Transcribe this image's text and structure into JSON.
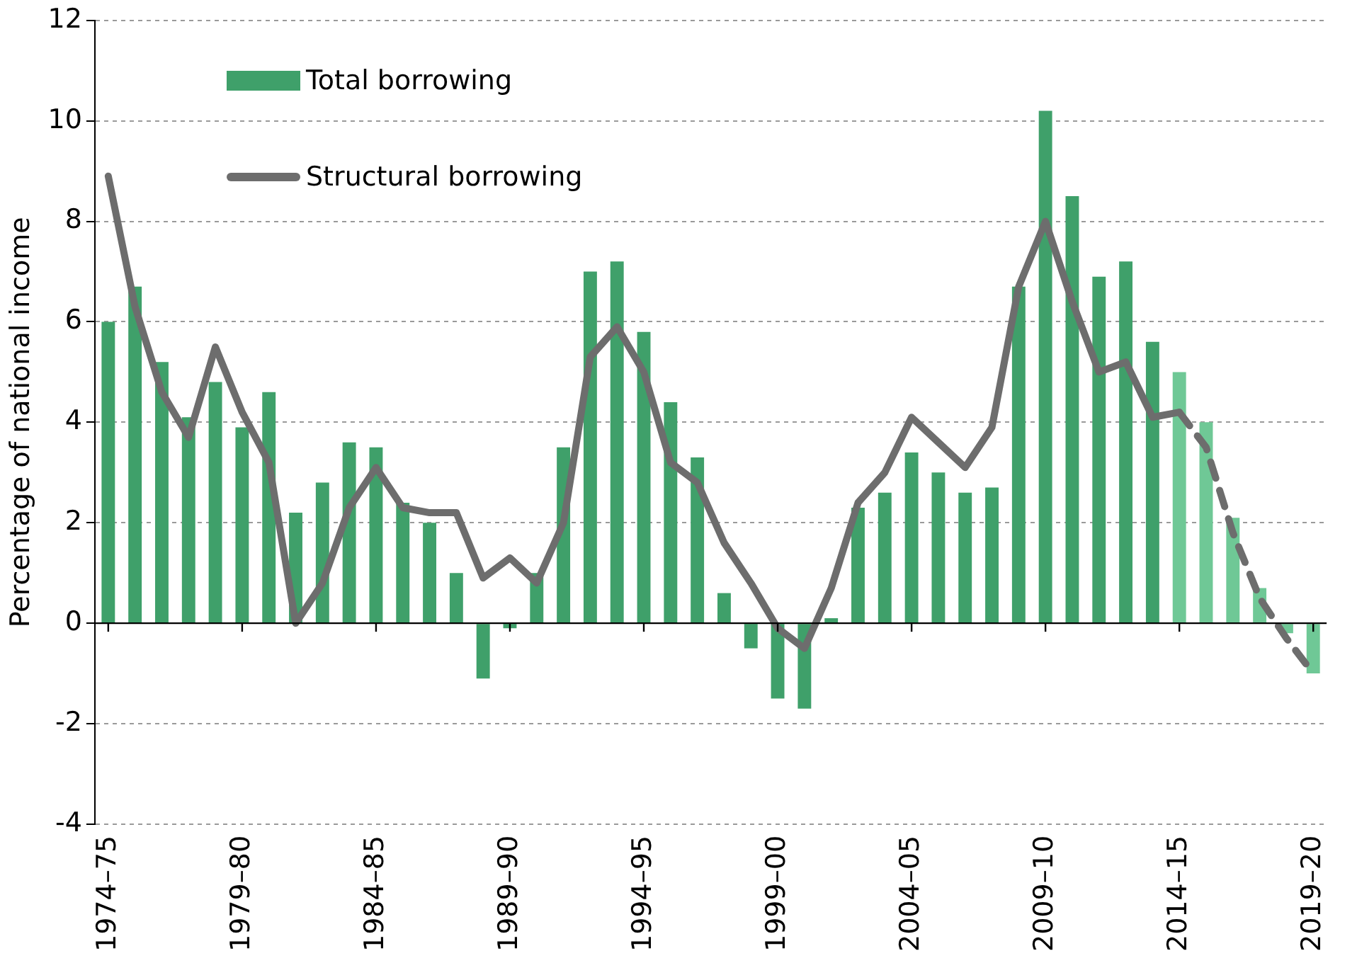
{
  "chart_data": {
    "type": "bar",
    "ylabel": "Percentage of national income",
    "categories": [
      "1974–75",
      null,
      null,
      null,
      null,
      "1979–80",
      null,
      null,
      null,
      null,
      "1984–85",
      null,
      null,
      null,
      null,
      "1989–90",
      null,
      null,
      null,
      null,
      "1994–95",
      null,
      null,
      null,
      null,
      "1999–00",
      null,
      null,
      null,
      null,
      "2004–05",
      null,
      null,
      null,
      null,
      "2009–10",
      null,
      null,
      null,
      null,
      "2014–15",
      null,
      null,
      null,
      null,
      "2019–20"
    ],
    "series": [
      {
        "name": "Total borrowing",
        "color": "#3fa06a",
        "colors": [
          "#3fa06a",
          "#3fa06a",
          "#3fa06a",
          "#3fa06a",
          "#3fa06a",
          "#3fa06a",
          "#3fa06a",
          "#3fa06a",
          "#3fa06a",
          "#3fa06a",
          "#3fa06a",
          "#3fa06a",
          "#3fa06a",
          "#3fa06a",
          "#3fa06a",
          "#3fa06a",
          "#3fa06a",
          "#3fa06a",
          "#3fa06a",
          "#3fa06a",
          "#3fa06a",
          "#3fa06a",
          "#3fa06a",
          "#3fa06a",
          "#3fa06a",
          "#3fa06a",
          "#3fa06a",
          "#3fa06a",
          "#3fa06a",
          "#3fa06a",
          "#3fa06a",
          "#3fa06a",
          "#3fa06a",
          "#3fa06a",
          "#3fa06a",
          "#3fa06a",
          "#3fa06a",
          "#3fa06a",
          "#3fa06a",
          "#3fa06a",
          "#6fc896",
          "#6fc896",
          "#6fc896",
          "#6fc896",
          "#6fc896",
          "#6fc896"
        ],
        "values": [
          6.0,
          6.7,
          5.2,
          4.1,
          4.8,
          3.9,
          4.6,
          2.2,
          2.8,
          3.6,
          3.5,
          2.4,
          2.0,
          1.0,
          -1.1,
          -0.1,
          1.0,
          3.5,
          7.0,
          7.2,
          5.8,
          4.4,
          3.3,
          0.6,
          -0.5,
          -1.5,
          -1.7,
          0.1,
          2.3,
          2.6,
          3.4,
          3.0,
          2.6,
          2.7,
          6.7,
          10.2,
          8.5,
          6.9,
          7.2,
          5.6,
          5.0,
          4.0,
          2.1,
          0.7,
          -0.2,
          -1.0
        ]
      },
      {
        "name": "Structural borrowing",
        "type": "line",
        "color": "#6d6d6d",
        "line_style": "solid",
        "values": [
          8.9,
          6.3,
          4.6,
          3.7,
          5.5,
          4.2,
          3.2,
          0.0,
          0.8,
          2.3,
          3.1,
          2.3,
          2.2,
          2.2,
          0.9,
          1.3,
          0.8,
          2.0,
          5.3,
          5.9,
          5.0,
          3.2,
          2.8,
          1.6,
          0.8,
          -0.1,
          -0.5,
          0.7,
          2.4,
          3.0,
          4.1,
          3.6,
          3.1,
          3.9,
          6.7,
          8.0,
          6.4,
          5.0,
          5.2,
          4.1,
          4.2,
          null,
          null,
          null,
          null,
          null
        ]
      },
      {
        "type": "line",
        "color": "#6d6d6d",
        "line_style": "dashed",
        "values": [
          null,
          null,
          null,
          null,
          null,
          null,
          null,
          null,
          null,
          null,
          null,
          null,
          null,
          null,
          null,
          null,
          null,
          null,
          null,
          null,
          null,
          null,
          null,
          null,
          null,
          null,
          null,
          null,
          null,
          null,
          null,
          null,
          null,
          null,
          null,
          null,
          null,
          null,
          null,
          null,
          4.2,
          3.5,
          1.8,
          0.5,
          -0.3,
          -1.0
        ]
      }
    ],
    "ylim": [
      -4,
      12
    ],
    "yticks": [
      -4,
      -2,
      0,
      2,
      4,
      6,
      8,
      10,
      12
    ],
    "grid": "y",
    "legend": "top left",
    "marker": "none"
  }
}
